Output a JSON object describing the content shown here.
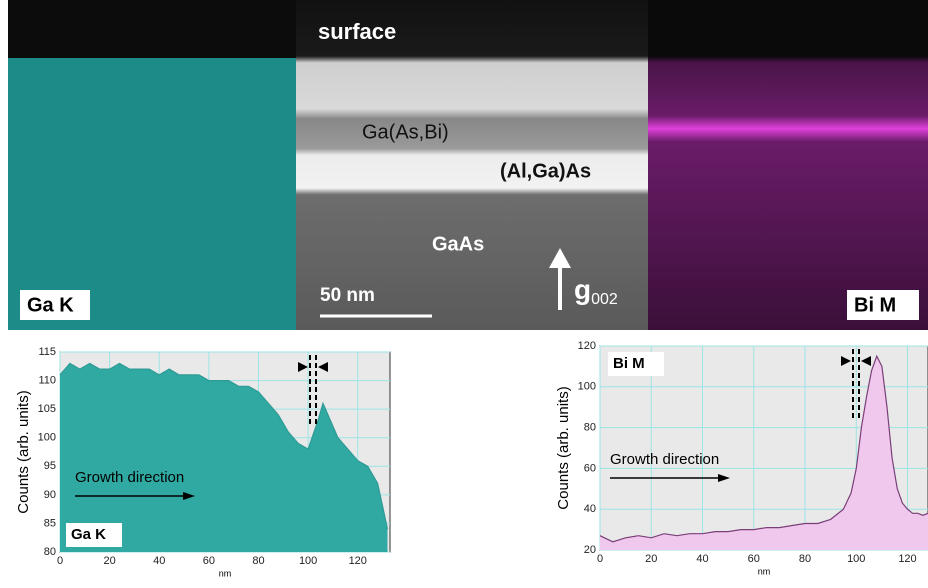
{
  "image_labels": {
    "surface": "surface",
    "layer_gaasbi": "Ga(As,Bi)",
    "layer_algaas": "(Al,Ga)As",
    "substrate": "GaAs",
    "scale_bar": "50 nm",
    "g_vector": "g",
    "g_subscript": "002",
    "left_map": "Ga K",
    "right_map": "Bi M"
  },
  "chart_data": [
    {
      "type": "area",
      "panel_label": "Ga K",
      "annotation": "Growth direction",
      "x_label": "nm",
      "y_label": "Counts (arb. units)",
      "x": [
        0,
        4,
        8,
        12,
        16,
        20,
        24,
        28,
        32,
        36,
        40,
        44,
        48,
        52,
        56,
        60,
        64,
        68,
        72,
        76,
        80,
        84,
        88,
        92,
        96,
        100,
        104,
        106,
        108,
        112,
        116,
        120,
        124,
        128,
        130,
        132
      ],
      "series": [
        {
          "name": "Ga K",
          "color": "#2f9a95",
          "fill": "#2fa9a2",
          "values": [
            111,
            113,
            112,
            113,
            112,
            112,
            113,
            112,
            112,
            112,
            111,
            112,
            111,
            111,
            111,
            110,
            110,
            110,
            109,
            109,
            108,
            106,
            104,
            101,
            99,
            98,
            103,
            106,
            104,
            100,
            98,
            96,
            95,
            92,
            88,
            84
          ]
        }
      ],
      "xlim": [
        0,
        133
      ],
      "ylim": [
        80,
        115
      ],
      "xticks": [
        0,
        20,
        40,
        60,
        80,
        100,
        120
      ],
      "yticks": [
        80,
        85,
        90,
        95,
        100,
        105,
        110,
        115
      ],
      "grid": true
    },
    {
      "type": "area",
      "panel_label": "Bi M",
      "annotation": "Growth direction",
      "x_label": "nm",
      "y_label": "Counts (arb. units)",
      "x": [
        0,
        5,
        10,
        15,
        20,
        25,
        30,
        35,
        40,
        45,
        50,
        55,
        60,
        65,
        70,
        75,
        80,
        85,
        90,
        95,
        98,
        100,
        102,
        104,
        106,
        108,
        110,
        112,
        114,
        116,
        118,
        120,
        122,
        124,
        126,
        128
      ],
      "series": [
        {
          "name": "Bi M",
          "color": "#7a3f78",
          "fill": "#f0c8ee",
          "values": [
            27,
            24,
            26,
            27,
            26,
            28,
            27,
            28,
            28,
            29,
            29,
            30,
            30,
            31,
            31,
            32,
            33,
            33,
            35,
            40,
            48,
            60,
            80,
            95,
            108,
            115,
            110,
            90,
            65,
            50,
            43,
            40,
            38,
            38,
            37,
            38
          ]
        }
      ],
      "xlim": [
        0,
        128
      ],
      "ylim": [
        20,
        120
      ],
      "xticks": [
        0,
        20,
        40,
        60,
        80,
        100,
        120
      ],
      "yticks": [
        20,
        40,
        60,
        80,
        100,
        120
      ],
      "grid": true
    }
  ]
}
